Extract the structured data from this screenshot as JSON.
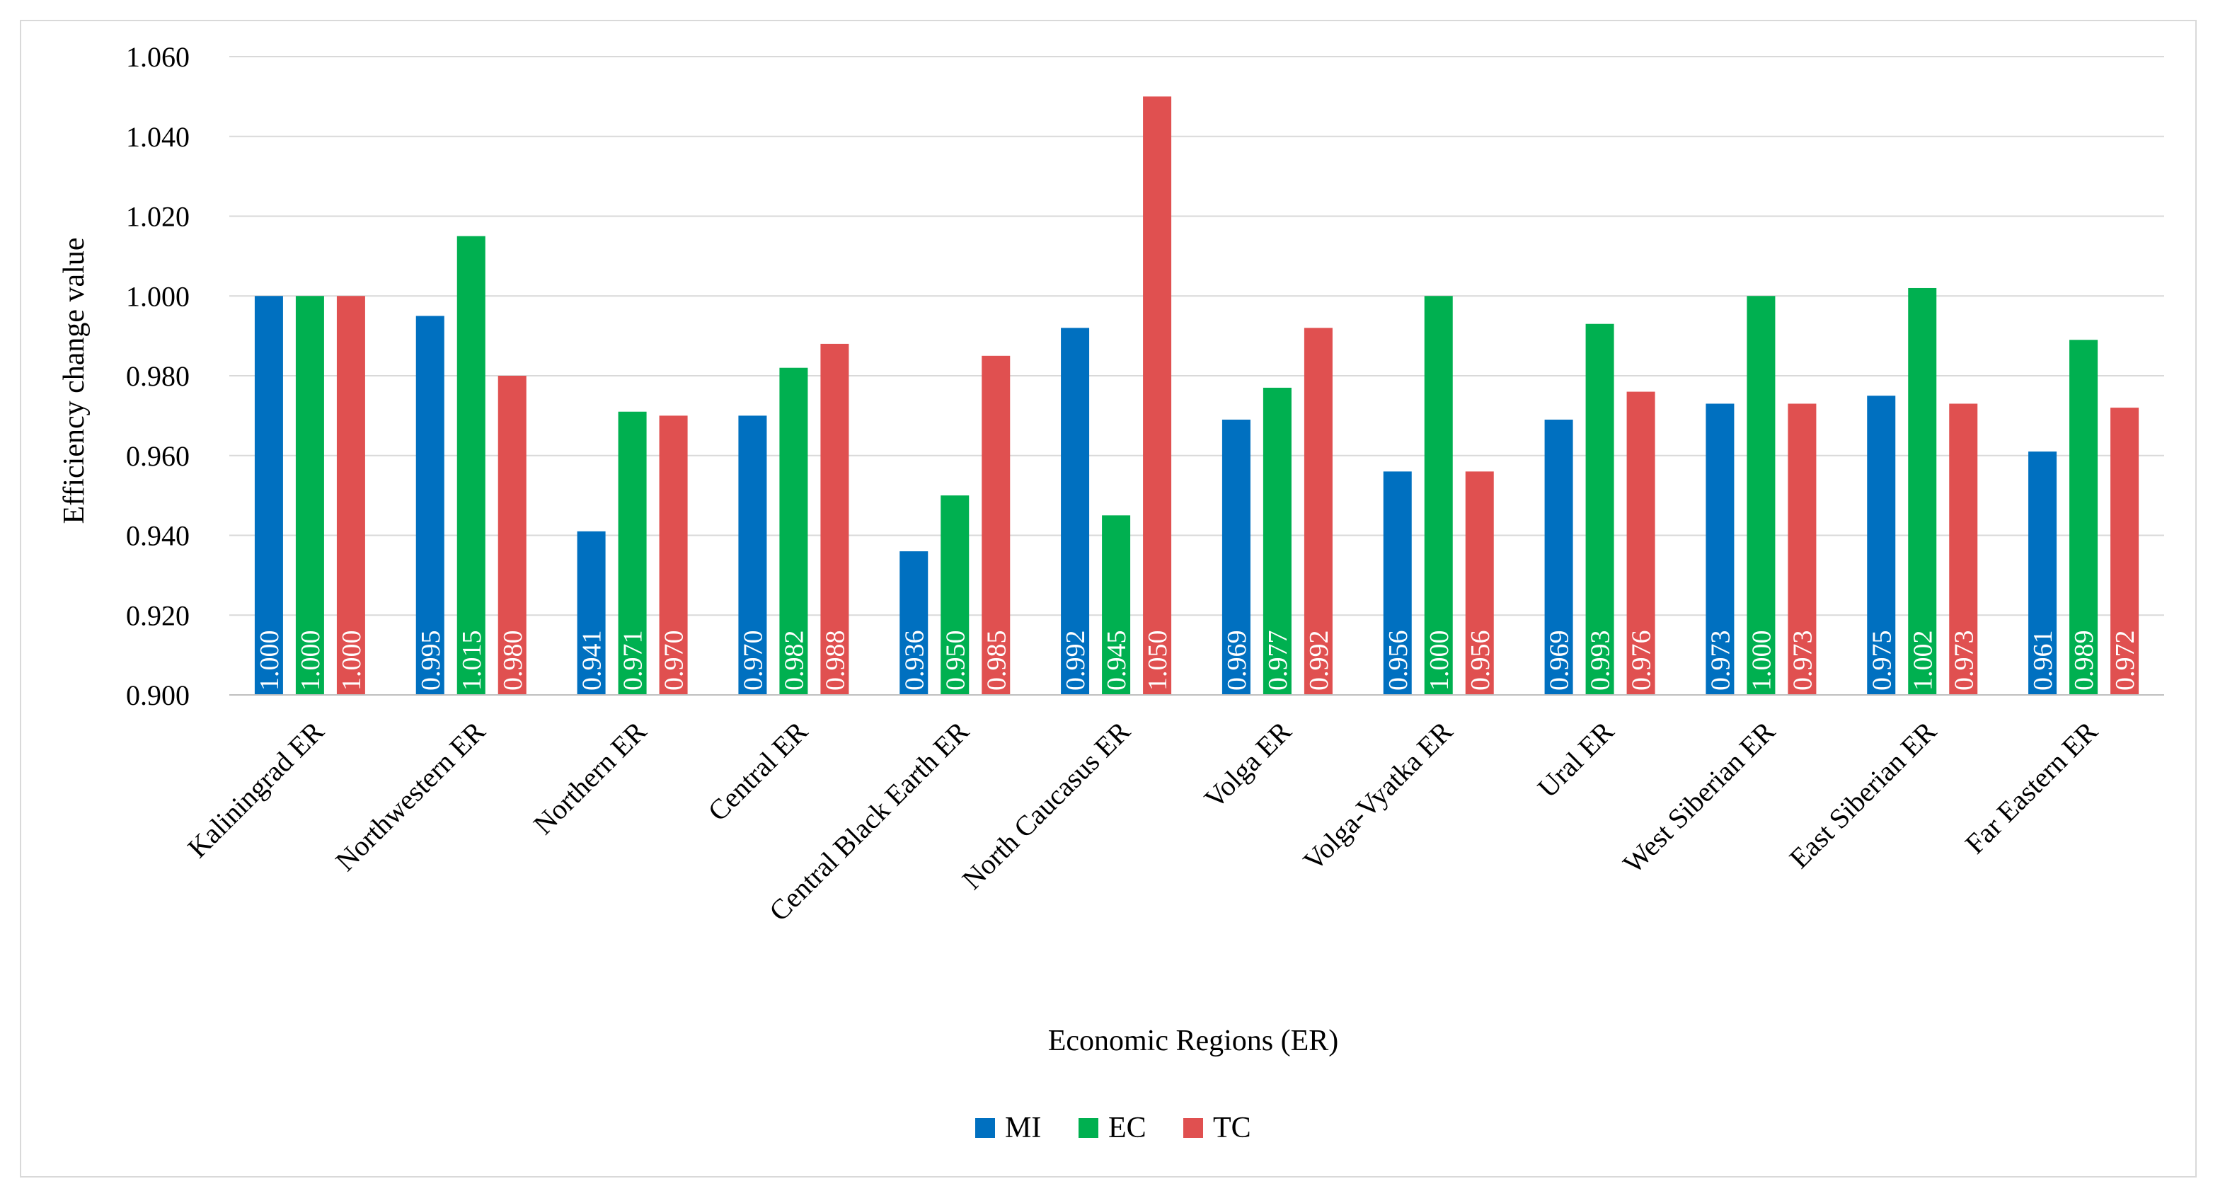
{
  "chart_data": {
    "type": "bar",
    "title": "",
    "xlabel": "Economic Regions (ER)",
    "ylabel": "Efficiency change value",
    "ylim": [
      0.9,
      1.06
    ],
    "yticks": [
      "0.900",
      "0.920",
      "0.940",
      "0.960",
      "0.980",
      "1.000",
      "1.020",
      "1.040",
      "1.060"
    ],
    "grid": true,
    "legend_position": "bottom",
    "categories": [
      "Kaliningrad ER",
      "Northwestern ER",
      "Northern ER",
      "Central ER",
      "Central Black Earth ER",
      "North Caucasus ER",
      "Volga ER",
      "Volga-Vyatka ER",
      "Ural ER",
      "West Siberian ER",
      "East Siberian ER",
      "Far Eastern ER"
    ],
    "series": [
      {
        "name": "MI",
        "color": "#0070C0",
        "values": [
          1.0,
          0.995,
          0.941,
          0.97,
          0.936,
          0.992,
          0.969,
          0.956,
          0.969,
          0.973,
          0.975,
          0.961
        ],
        "labels": [
          "1.000",
          "0.995",
          "0.941",
          "0.970",
          "0.936",
          "0.992",
          "0.969",
          "0.956",
          "0.969",
          "0.973",
          "0.975",
          "0.961"
        ]
      },
      {
        "name": "EC",
        "color": "#00B050",
        "values": [
          1.0,
          1.015,
          0.971,
          0.982,
          0.95,
          0.945,
          0.977,
          1.0,
          0.993,
          1.0,
          1.002,
          0.989
        ],
        "labels": [
          "1.000",
          "1.015",
          "0.971",
          "0.982",
          "0.950",
          "0.945",
          "0.977",
          "1.000",
          "0.993",
          "1.000",
          "1.002",
          "0.989"
        ]
      },
      {
        "name": "TC",
        "color": "#E05050",
        "values": [
          1.0,
          0.98,
          0.97,
          0.988,
          0.985,
          1.05,
          0.992,
          0.956,
          0.976,
          0.973,
          0.973,
          0.972
        ],
        "labels": [
          "1.000",
          "0.980",
          "0.970",
          "0.988",
          "0.985",
          "1.050",
          "0.992",
          "0.956",
          "0.976",
          "0.973",
          "0.973",
          "0.972"
        ]
      }
    ]
  }
}
